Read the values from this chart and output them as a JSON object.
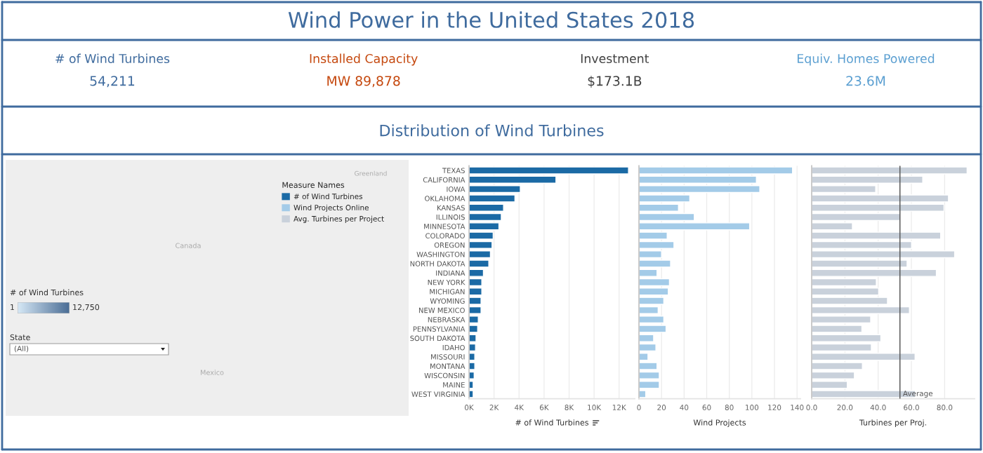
{
  "chart_data": [
    {
      "type": "other",
      "title": "Wind Power in the United States 2018",
      "annotations": [
        "# of Wind Turbines",
        "54,211",
        "Installed Capacity",
        "MW 89,878",
        "Investment",
        "$173.1B",
        "Equiv. Homes Powered",
        "23.6M"
      ],
      "colors": [
        "#3f6b9e",
        "#c5480e",
        "#404040",
        "#5b9fd1"
      ]
    },
    {
      "type": "other",
      "title": "Distribution of Wind Turbines",
      "colors": [
        "#d6e8f6",
        "#4a6d95"
      ],
      "annotations": [
        "# of Wind Turbines",
        "1",
        "12,750",
        "State",
        "(All)",
        "Canada",
        "Greenland",
        "Mexico"
      ]
    },
    {
      "type": "bar",
      "orientation": "horizontal",
      "categories": [
        "TEXAS",
        "CALIFORNIA",
        "IOWA",
        "OKLAHOMA",
        "KANSAS",
        "ILLINOIS",
        "MINNESOTA",
        "COLORADO",
        "OREGON",
        "WASHINGTON",
        "NORTH DAKOTA",
        "INDIANA",
        "NEW YORK",
        "MICHIGAN",
        "WYOMING",
        "NEW MEXICO",
        "NEBRASKA",
        "PENNSYLVANIA",
        "SOUTH DAKOTA",
        "IDAHO",
        "MISSOURI",
        "MONTANA",
        "WISCONSIN",
        "MAINE",
        "WEST VIRGINIA"
      ],
      "series": [
        {
          "name": "# of Wind Turbines",
          "color": "#1b6aa5",
          "values": [
            12750,
            6950,
            4100,
            3670,
            2760,
            2580,
            2390,
            1930,
            1840,
            1710,
            1580,
            1150,
            1020,
            1020,
            960,
            960,
            740,
            690,
            560,
            520,
            460,
            460,
            410,
            330,
            330
          ]
        }
      ],
      "xlabel": "# of Wind Turbines",
      "xlim": [
        0,
        13250
      ],
      "xticks": [
        {
          "value": 0,
          "label": "0K"
        },
        {
          "value": 2000,
          "label": "2K"
        },
        {
          "value": 4000,
          "label": "4K"
        },
        {
          "value": 6000,
          "label": "6K"
        },
        {
          "value": 8000,
          "label": "8K"
        },
        {
          "value": 10000,
          "label": "10K"
        },
        {
          "value": 12000,
          "label": "12K"
        }
      ],
      "grid": "x",
      "legend": "left",
      "legend_title": "Measure Names"
    },
    {
      "type": "bar",
      "orientation": "horizontal",
      "categories": [
        null,
        null,
        null,
        null,
        null,
        null,
        null,
        null,
        null,
        null,
        null,
        null,
        null,
        null,
        null,
        null,
        null,
        null,
        null,
        null,
        null,
        null,
        null,
        null,
        null
      ],
      "series": [
        {
          "name": "Wind Projects Online",
          "color": "#a3cbe8",
          "values": [
            136,
            104,
            107,
            45,
            35,
            49,
            98,
            25,
            31,
            20,
            28,
            16,
            27,
            26,
            22,
            17,
            22,
            24,
            13,
            15,
            8,
            16,
            18,
            18,
            6
          ]
        }
      ],
      "xlabel": "Wind Projects",
      "xlim": [
        0,
        143
      ],
      "xticks": [
        0,
        20,
        40,
        60,
        80,
        100,
        120,
        140
      ],
      "grid": "x",
      "legend": "left",
      "tick_labels": "x"
    },
    {
      "type": "bar",
      "orientation": "horizontal",
      "categories": [
        null,
        null,
        null,
        null,
        null,
        null,
        null,
        null,
        null,
        null,
        null,
        null,
        null,
        null,
        null,
        null,
        null,
        null,
        null,
        null,
        null,
        null,
        null,
        null,
        null
      ],
      "series": [
        {
          "name": "Avg. Turbines per Project",
          "color": "#c9d1db",
          "values": [
            93.5,
            66.8,
            38.5,
            82.3,
            79.6,
            53.2,
            24.5,
            77.6,
            60.1,
            86.0,
            57.4,
            75.0,
            38.9,
            40.3,
            45.6,
            58.8,
            35.5,
            30.2,
            41.6,
            35.9,
            62.2,
            30.5,
            25.7,
            21.4,
            62.4
          ]
        }
      ],
      "xlabel": "Turbines per Proj.",
      "xlim": [
        0,
        98
      ],
      "xticks": [
        {
          "value": 0,
          "label": "0.0"
        },
        {
          "value": 20,
          "label": "20.0"
        },
        {
          "value": 40,
          "label": "40.0"
        },
        {
          "value": 60,
          "label": "60.0"
        },
        {
          "value": 80,
          "label": "80.0"
        }
      ],
      "grid": "x",
      "legend": "left",
      "tick_labels": "x",
      "ref_lines": [
        {
          "axis": "x",
          "value": 53.1,
          "label": "Average",
          "color": "#5a5a5a"
        }
      ]
    }
  ]
}
